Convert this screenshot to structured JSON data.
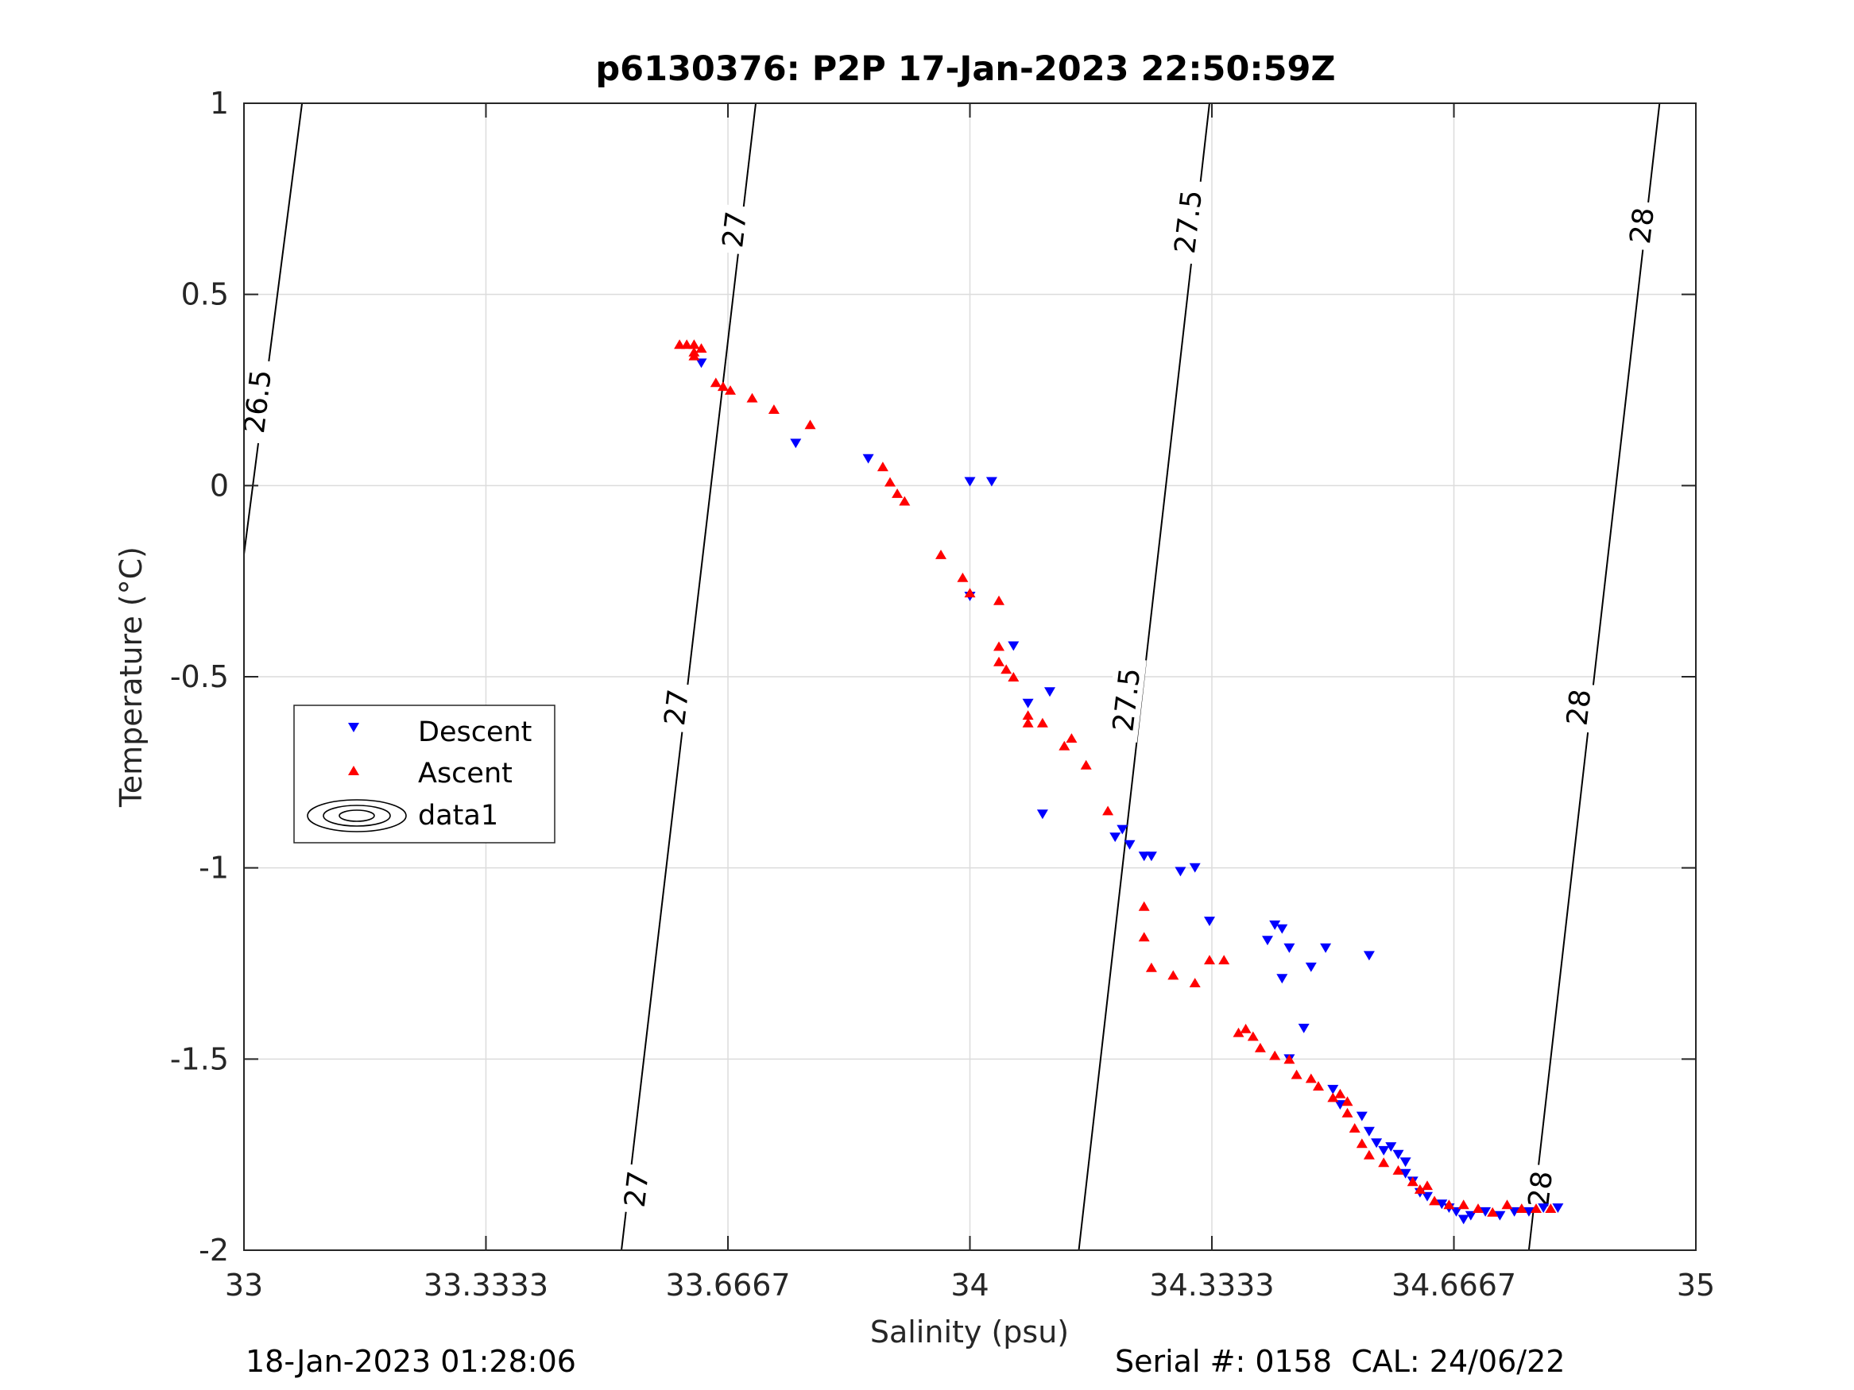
{
  "chart_data": {
    "type": "scatter",
    "title": "p6130376: P2P 17-Jan-2023 22:50:59Z",
    "xlabel": "Salinity (psu)",
    "ylabel": "Temperature (°C)",
    "xlim": [
      33,
      35
    ],
    "ylim": [
      -2,
      1
    ],
    "x_ticks": [
      33,
      33.3333,
      33.6667,
      34,
      34.3333,
      34.6667,
      35
    ],
    "x_tick_labels": [
      "33",
      "33.3333",
      "33.6667",
      "34",
      "34.3333",
      "34.6667",
      "35"
    ],
    "y_ticks": [
      -2,
      -1.5,
      -1,
      -0.5,
      0,
      0.5,
      1
    ],
    "y_tick_labels": [
      "-2",
      "-1.5",
      "-1",
      "-0.5",
      "0",
      "0.5",
      "1"
    ],
    "grid": true,
    "legend_position": "left-middle",
    "legend": [
      "Descent",
      "Ascent",
      "data1"
    ],
    "series": [
      {
        "name": "Descent",
        "marker": "triangle-down",
        "color": "#0000ff",
        "points": [
          [
            33.63,
            0.32
          ],
          [
            33.76,
            0.11
          ],
          [
            33.86,
            0.07
          ],
          [
            34.0,
            0.01
          ],
          [
            34.03,
            0.01
          ],
          [
            34.0,
            -0.29
          ],
          [
            34.06,
            -0.42
          ],
          [
            34.08,
            -0.57
          ],
          [
            34.11,
            -0.54
          ],
          [
            34.1,
            -0.86
          ],
          [
            34.2,
            -0.92
          ],
          [
            34.21,
            -0.9
          ],
          [
            34.22,
            -0.94
          ],
          [
            34.24,
            -0.97
          ],
          [
            34.25,
            -0.97
          ],
          [
            34.29,
            -1.01
          ],
          [
            34.31,
            -1.0
          ],
          [
            34.33,
            -1.14
          ],
          [
            34.41,
            -1.19
          ],
          [
            34.42,
            -1.15
          ],
          [
            34.43,
            -1.16
          ],
          [
            34.44,
            -1.21
          ],
          [
            34.43,
            -1.29
          ],
          [
            34.47,
            -1.26
          ],
          [
            34.46,
            -1.42
          ],
          [
            34.49,
            -1.21
          ],
          [
            34.44,
            -1.5
          ],
          [
            34.55,
            -1.23
          ],
          [
            34.5,
            -1.58
          ],
          [
            34.51,
            -1.62
          ],
          [
            34.54,
            -1.65
          ],
          [
            34.55,
            -1.69
          ],
          [
            34.56,
            -1.72
          ],
          [
            34.57,
            -1.74
          ],
          [
            34.58,
            -1.73
          ],
          [
            34.59,
            -1.75
          ],
          [
            34.6,
            -1.77
          ],
          [
            34.6,
            -1.8
          ],
          [
            34.61,
            -1.82
          ],
          [
            34.62,
            -1.85
          ],
          [
            34.63,
            -1.86
          ],
          [
            34.65,
            -1.88
          ],
          [
            34.66,
            -1.89
          ],
          [
            34.67,
            -1.9
          ],
          [
            34.68,
            -1.92
          ],
          [
            34.69,
            -1.91
          ],
          [
            34.71,
            -1.9
          ],
          [
            34.73,
            -1.91
          ],
          [
            34.75,
            -1.9
          ],
          [
            34.77,
            -1.9
          ],
          [
            34.79,
            -1.89
          ],
          [
            34.81,
            -1.89
          ]
        ]
      },
      {
        "name": "Ascent",
        "marker": "triangle-up",
        "color": "#ff0000",
        "points": [
          [
            33.6,
            0.37
          ],
          [
            33.61,
            0.37
          ],
          [
            33.62,
            0.37
          ],
          [
            33.62,
            0.35
          ],
          [
            33.63,
            0.36
          ],
          [
            33.62,
            0.34
          ],
          [
            33.65,
            0.27
          ],
          [
            33.66,
            0.26
          ],
          [
            33.67,
            0.25
          ],
          [
            33.7,
            0.23
          ],
          [
            33.73,
            0.2
          ],
          [
            33.78,
            0.16
          ],
          [
            33.88,
            0.05
          ],
          [
            33.89,
            0.01
          ],
          [
            33.9,
            -0.02
          ],
          [
            33.91,
            -0.04
          ],
          [
            33.96,
            -0.18
          ],
          [
            33.99,
            -0.24
          ],
          [
            34.0,
            -0.28
          ],
          [
            34.04,
            -0.3
          ],
          [
            34.04,
            -0.42
          ],
          [
            34.04,
            -0.46
          ],
          [
            34.05,
            -0.48
          ],
          [
            34.06,
            -0.5
          ],
          [
            34.08,
            -0.6
          ],
          [
            34.08,
            -0.62
          ],
          [
            34.1,
            -0.62
          ],
          [
            34.13,
            -0.68
          ],
          [
            34.14,
            -0.66
          ],
          [
            34.16,
            -0.73
          ],
          [
            34.19,
            -0.85
          ],
          [
            34.24,
            -1.1
          ],
          [
            34.24,
            -1.18
          ],
          [
            34.25,
            -1.26
          ],
          [
            34.28,
            -1.28
          ],
          [
            34.31,
            -1.3
          ],
          [
            34.33,
            -1.24
          ],
          [
            34.35,
            -1.24
          ],
          [
            34.37,
            -1.43
          ],
          [
            34.38,
            -1.42
          ],
          [
            34.39,
            -1.44
          ],
          [
            34.4,
            -1.47
          ],
          [
            34.42,
            -1.49
          ],
          [
            34.44,
            -1.5
          ],
          [
            34.45,
            -1.54
          ],
          [
            34.47,
            -1.55
          ],
          [
            34.48,
            -1.57
          ],
          [
            34.5,
            -1.6
          ],
          [
            34.51,
            -1.59
          ],
          [
            34.52,
            -1.61
          ],
          [
            34.52,
            -1.64
          ],
          [
            34.53,
            -1.68
          ],
          [
            34.54,
            -1.72
          ],
          [
            34.55,
            -1.75
          ],
          [
            34.57,
            -1.77
          ],
          [
            34.59,
            -1.79
          ],
          [
            34.61,
            -1.82
          ],
          [
            34.62,
            -1.84
          ],
          [
            34.63,
            -1.83
          ],
          [
            34.64,
            -1.87
          ],
          [
            34.66,
            -1.88
          ],
          [
            34.68,
            -1.88
          ],
          [
            34.7,
            -1.89
          ],
          [
            34.72,
            -1.9
          ],
          [
            34.74,
            -1.88
          ],
          [
            34.76,
            -1.89
          ],
          [
            34.78,
            -1.89
          ],
          [
            34.8,
            -1.89
          ]
        ]
      }
    ],
    "contours": [
      {
        "label": "26.5",
        "points": [
          [
            33.0,
            -0.18
          ],
          [
            33.08,
            1.0
          ]
        ]
      },
      {
        "label": "27",
        "points": [
          [
            33.52,
            -2.0
          ],
          [
            33.705,
            1.0
          ]
        ]
      },
      {
        "label": "27.5",
        "points": [
          [
            34.15,
            -2.0
          ],
          [
            34.33,
            1.0
          ]
        ]
      },
      {
        "label": "28",
        "points": [
          [
            34.77,
            -2.0
          ],
          [
            34.95,
            1.0
          ]
        ]
      }
    ],
    "contour_labels": [
      {
        "text": "26.5",
        "x": 33.018,
        "y": 0.22
      },
      {
        "text": "27",
        "x": 33.675,
        "y": 0.67
      },
      {
        "text": "27",
        "x": 33.595,
        "y": -0.58
      },
      {
        "text": "27",
        "x": 33.54,
        "y": -1.84
      },
      {
        "text": "27.5",
        "x": 34.3,
        "y": 0.69
      },
      {
        "text": "27.5",
        "x": 34.215,
        "y": -0.56
      },
      {
        "text": "28",
        "x": 34.925,
        "y": 0.68
      },
      {
        "text": "28",
        "x": 34.838,
        "y": -0.58
      },
      {
        "text": "28",
        "x": 34.785,
        "y": -1.84
      }
    ]
  },
  "footer": {
    "left_text": "18-Jan-2023 01:28:06",
    "right_text": "Serial #: 0158  CAL: 24/06/22"
  },
  "colors": {
    "descent": "#0000ff",
    "ascent": "#ff0000",
    "grid": "#dcdcdc",
    "axis": "#262626"
  }
}
